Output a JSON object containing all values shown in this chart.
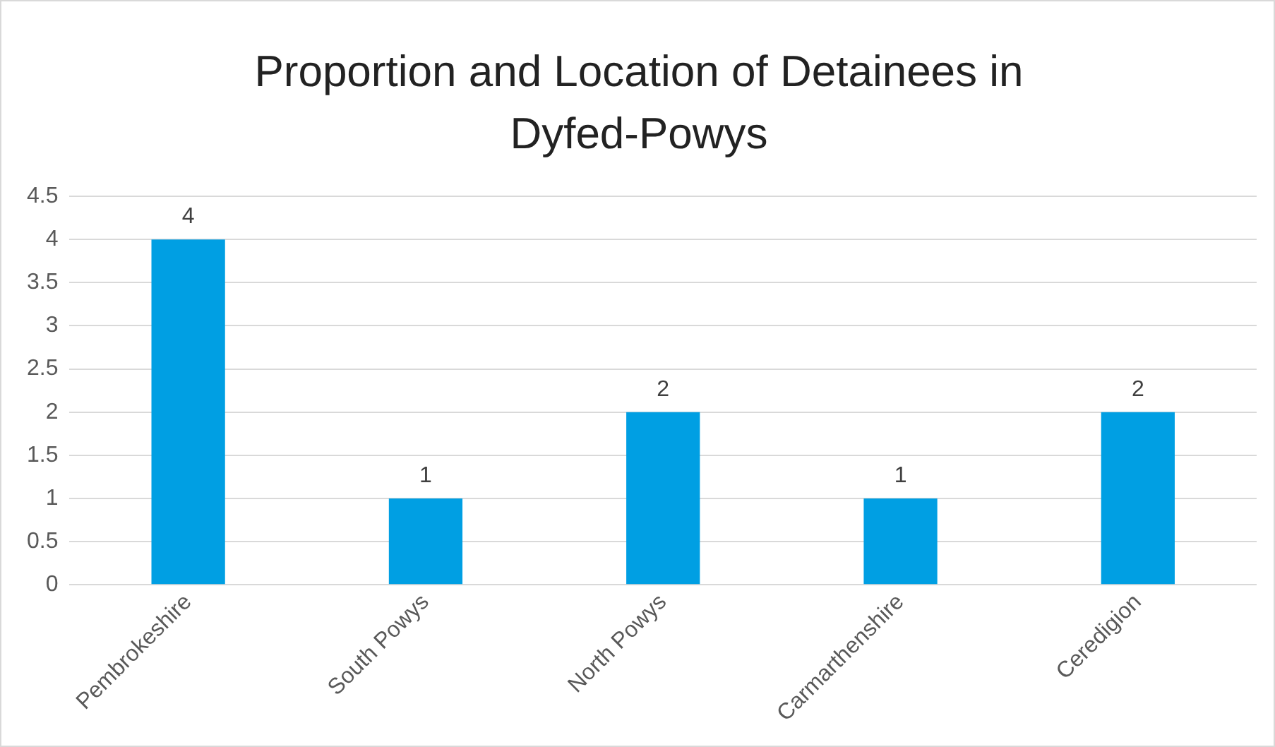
{
  "chart_data": {
    "type": "bar",
    "title": "Proportion and Location of Detainees in Dyfed-Powys",
    "categories": [
      "Pembrokeshire",
      "South Powys",
      "North Powys",
      "Carmarthenshire",
      "Ceredigion"
    ],
    "values": [
      4,
      1,
      2,
      1,
      2
    ],
    "color": "#009fe3",
    "ylim": [
      0,
      4.5
    ],
    "yticks": [
      0,
      0.5,
      1,
      1.5,
      2,
      2.5,
      3,
      3.5,
      4,
      4.5
    ],
    "grid": "y",
    "legend": false,
    "data_labels": true
  }
}
